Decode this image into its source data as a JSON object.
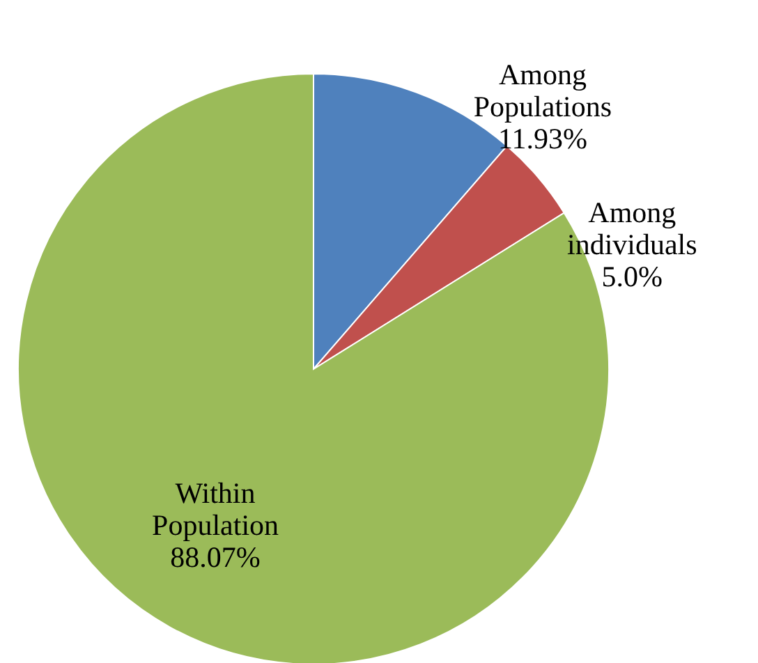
{
  "chart_data": {
    "type": "pie",
    "categories": [
      "Among Populations",
      "Among individuals",
      "Within Population"
    ],
    "values": [
      11.93,
      5.0,
      88.07
    ],
    "value_labels": [
      "11.93%",
      "5.0%",
      "88.07%"
    ],
    "colors": [
      "#4f81bd",
      "#c0504d",
      "#9bbb59"
    ]
  }
}
